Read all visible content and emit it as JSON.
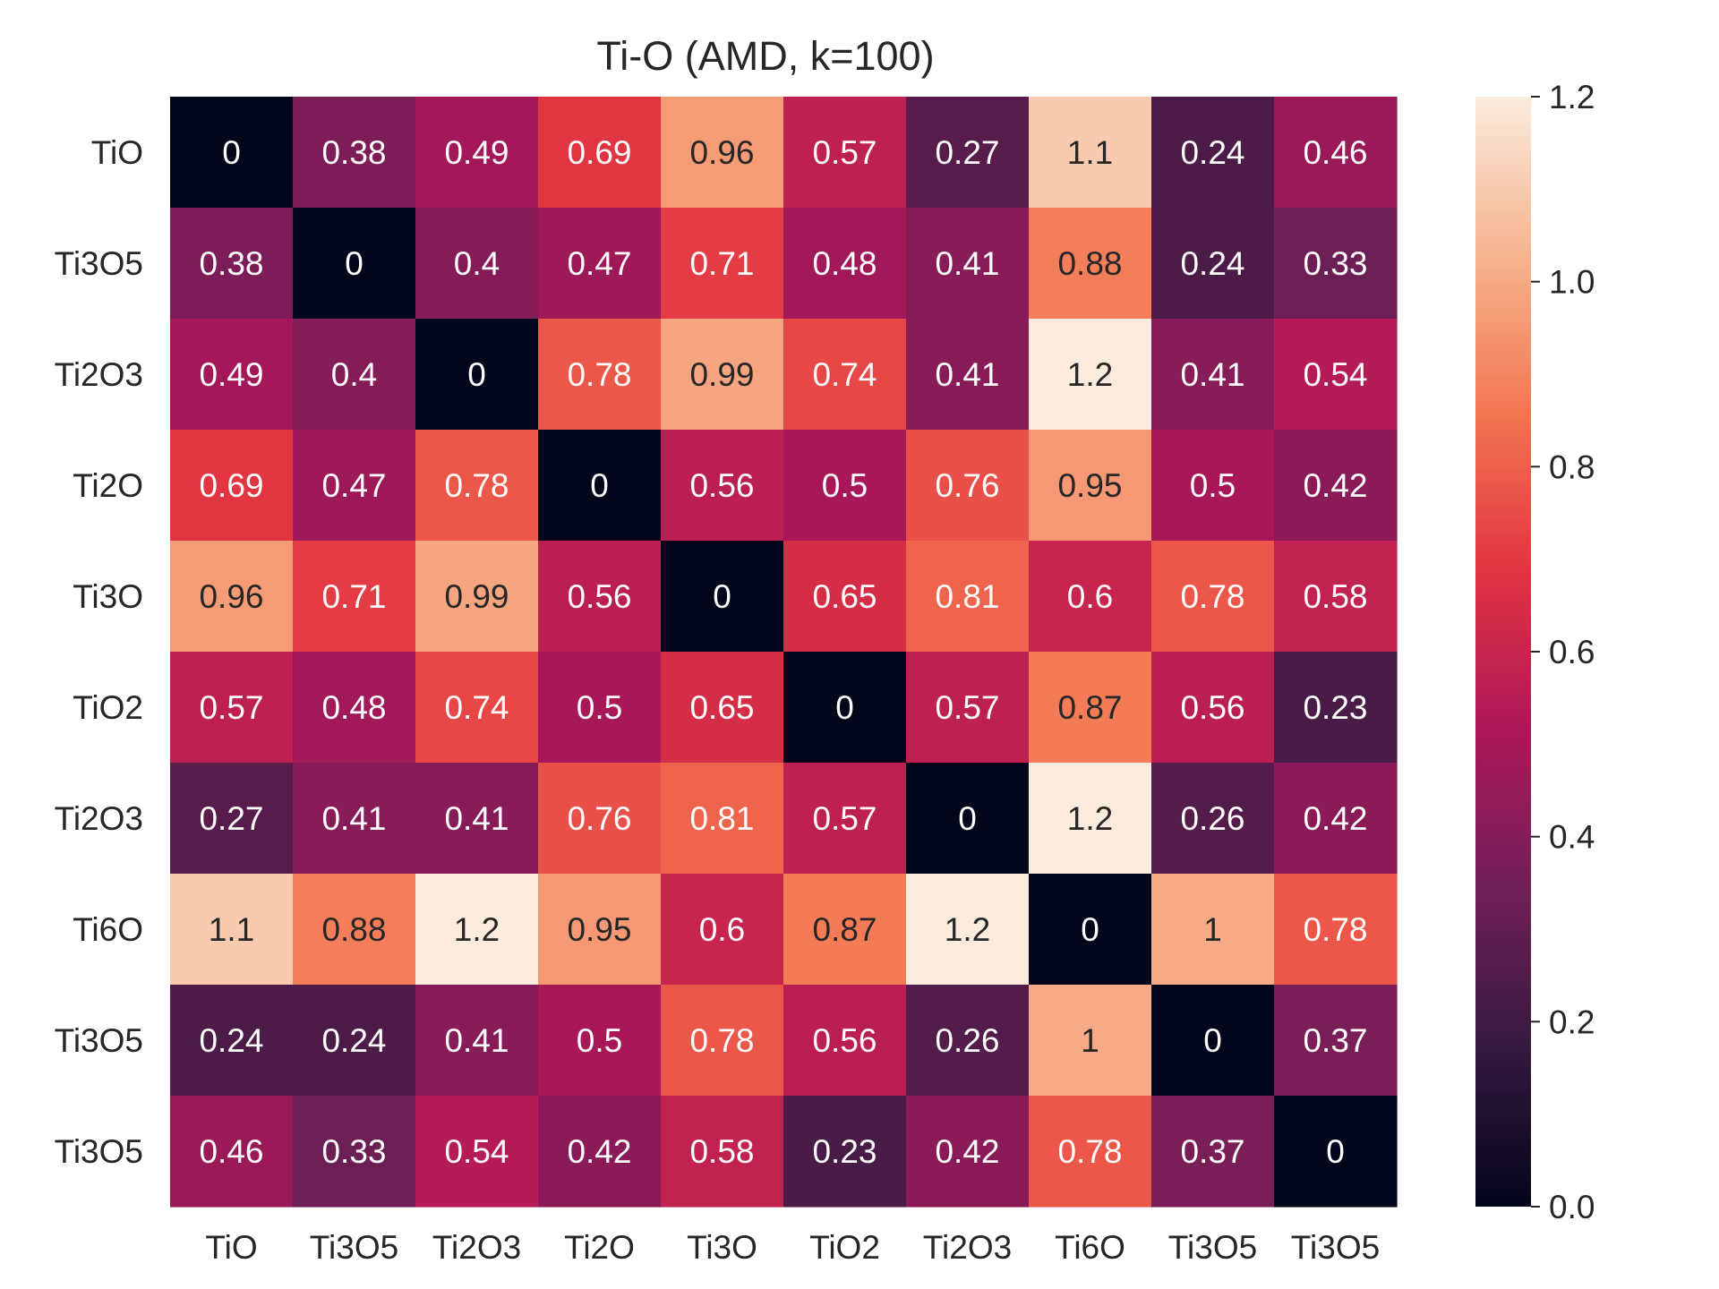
{
  "chart_data": {
    "type": "heatmap",
    "title": "Ti-O (AMD, k=100)",
    "xlabel": "",
    "ylabel": "",
    "x_categories": [
      "TiO",
      "Ti3O5",
      "Ti2O3",
      "Ti2O",
      "Ti3O",
      "TiO2",
      "Ti2O3",
      "Ti6O",
      "Ti3O5",
      "Ti3O5"
    ],
    "y_categories": [
      "TiO",
      "Ti3O5",
      "Ti2O3",
      "Ti2O",
      "Ti3O",
      "TiO2",
      "Ti2O3",
      "Ti6O",
      "Ti3O5",
      "Ti3O5"
    ],
    "values": [
      [
        0,
        0.38,
        0.49,
        0.69,
        0.96,
        0.57,
        0.27,
        1.1,
        0.24,
        0.46
      ],
      [
        0.38,
        0,
        0.4,
        0.47,
        0.71,
        0.48,
        0.41,
        0.88,
        0.24,
        0.33
      ],
      [
        0.49,
        0.4,
        0,
        0.78,
        0.99,
        0.74,
        0.41,
        1.2,
        0.41,
        0.54
      ],
      [
        0.69,
        0.47,
        0.78,
        0,
        0.56,
        0.5,
        0.76,
        0.95,
        0.5,
        0.42
      ],
      [
        0.96,
        0.71,
        0.99,
        0.56,
        0,
        0.65,
        0.81,
        0.6,
        0.78,
        0.58
      ],
      [
        0.57,
        0.48,
        0.74,
        0.5,
        0.65,
        0,
        0.57,
        0.87,
        0.56,
        0.23
      ],
      [
        0.27,
        0.41,
        0.41,
        0.76,
        0.81,
        0.57,
        0,
        1.2,
        0.26,
        0.42
      ],
      [
        1.1,
        0.88,
        1.2,
        0.95,
        0.6,
        0.87,
        1.2,
        0,
        1,
        0.78
      ],
      [
        0.24,
        0.24,
        0.41,
        0.5,
        0.78,
        0.56,
        0.26,
        1,
        0,
        0.37
      ],
      [
        0.46,
        0.33,
        0.54,
        0.42,
        0.58,
        0.23,
        0.42,
        0.78,
        0.37,
        0
      ]
    ],
    "colorbar": {
      "range": [
        0,
        1.2
      ],
      "ticks": [
        0.0,
        0.2,
        0.4,
        0.6,
        0.8,
        1.0,
        1.2
      ],
      "tick_labels": [
        "0.0",
        "0.2",
        "0.4",
        "0.6",
        "0.8",
        "1.0",
        "1.2"
      ]
    },
    "colormap": "rocket",
    "colormap_stops": [
      "#03051a",
      "#35193e",
      "#701f57",
      "#ad1759",
      "#e13342",
      "#f37651",
      "#f6b48f",
      "#faebdd"
    ],
    "grid": false
  }
}
